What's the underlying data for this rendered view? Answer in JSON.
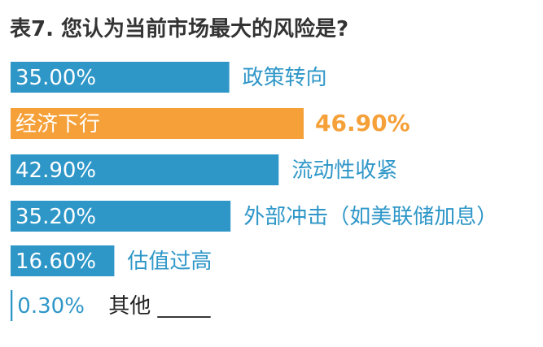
{
  "chart_data": {
    "type": "bar",
    "orientation": "horizontal",
    "title": "表7. 您认为当前市场最大的风险是?",
    "categories": [
      "政策转向",
      "经济下行",
      "流动性收紧",
      "外部冲击（如美联储加息）",
      "估值过高",
      "其他 _____"
    ],
    "values": [
      35.0,
      46.9,
      42.9,
      35.2,
      16.6,
      0.3
    ],
    "value_labels": [
      "35.00%",
      "46.90%",
      "42.90%",
      "35.20%",
      "16.60%",
      "0.30%"
    ],
    "xlim": [
      0,
      46.9
    ],
    "highlight_index": 1,
    "xlabel": "",
    "ylabel": "",
    "grid": false,
    "legend": "none"
  },
  "colors": {
    "bar": "#2f97c8",
    "highlight": "#f5a038",
    "bar_text": "#ffffff",
    "category_text": "#2f97c8",
    "highlight_value_text": "#f5a038",
    "title_text": "#333333",
    "other_text": "#222222",
    "thin_value_text": "#2f97c8"
  }
}
